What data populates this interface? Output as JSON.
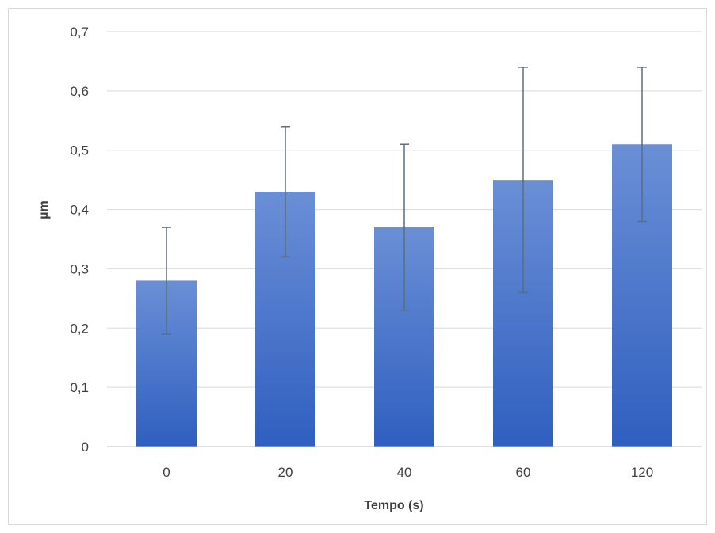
{
  "chart_data": {
    "type": "bar",
    "title": "",
    "xlabel": "Tempo (s)",
    "ylabel": "µm",
    "categories": [
      "0",
      "20",
      "40",
      "60",
      "120"
    ],
    "values": [
      0.28,
      0.43,
      0.37,
      0.45,
      0.51
    ],
    "error_high": [
      0.37,
      0.54,
      0.51,
      0.64,
      0.64
    ],
    "error_low": [
      0.19,
      0.32,
      0.23,
      0.26,
      0.38
    ],
    "ylim": [
      0,
      0.7
    ],
    "yticks": [
      "0",
      "0,1",
      "0,2",
      "0,3",
      "0,4",
      "0,5",
      "0,6",
      "0,7"
    ],
    "grid": true,
    "legend": "none",
    "colors": {
      "bar_top": "#6a8fd6",
      "bar_bottom": "#2f5fbf",
      "error_bar": "#5b6d7f",
      "grid": "#d9d9d9",
      "axis": "#bfbfbf"
    }
  }
}
